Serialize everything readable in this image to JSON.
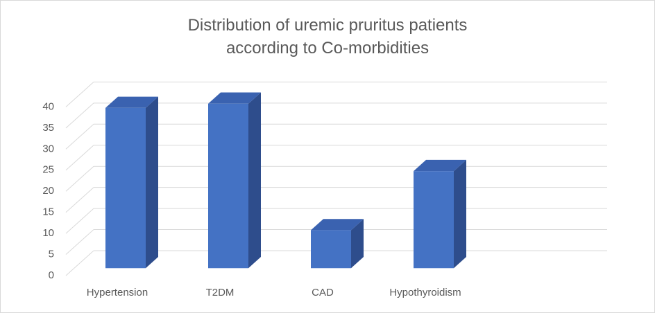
{
  "chart_data": {
    "type": "bar3d",
    "title": "Distribution of uremic pruritus patients according to Co-morbidities",
    "categories": [
      "Hypertension",
      "T2DM",
      "CAD",
      "Hypothyroidism",
      null
    ],
    "values": [
      38,
      39,
      9,
      23,
      null
    ],
    "color": "#4472c4",
    "ylim": [
      0,
      40
    ],
    "yticks": [
      0,
      5,
      10,
      15,
      20,
      25,
      30,
      35,
      40
    ],
    "grid": true
  }
}
